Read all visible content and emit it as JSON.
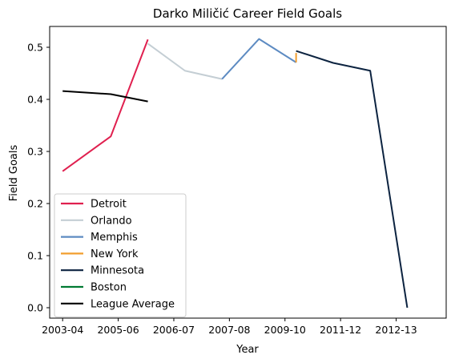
{
  "chart_data": {
    "type": "line",
    "title": "Darko Miličić Career Field Goals",
    "xlabel": "Year",
    "ylabel": "Field Goals",
    "x_range": [
      2002.65,
      2013.35
    ],
    "ylim": [
      -0.02,
      0.54
    ],
    "x_ticks": [
      {
        "value": 2003,
        "label": "2003-04"
      },
      {
        "value": 2005,
        "label": "2005-06"
      },
      {
        "value": 2007,
        "label": "2006-07"
      },
      {
        "value": 2009,
        "label": "2007-08"
      },
      {
        "value": 2011,
        "label": "2009-10"
      },
      {
        "value": 2013,
        "label": "2011-12"
      },
      {
        "value": 2015,
        "label": "2012-13"
      }
    ],
    "y_ticks": [
      0.0,
      0.1,
      0.2,
      0.3,
      0.4,
      0.5
    ],
    "y_tick_labels": [
      "0.0",
      "0.1",
      "0.2",
      "0.3",
      "0.4",
      "0.5"
    ],
    "legend_position": "lower-left",
    "series": [
      {
        "name": "Detroit",
        "color": "#e0204f",
        "points": [
          [
            2003,
            0.262
          ],
          [
            2004.3,
            0.329
          ],
          [
            2005.3,
            0.515
          ]
        ]
      },
      {
        "name": "Orlando",
        "color": "#c4ced4",
        "points": [
          [
            2005.3,
            0.507
          ],
          [
            2006.3,
            0.455
          ],
          [
            2007.3,
            0.439
          ]
        ]
      },
      {
        "name": "Memphis",
        "color": "#5d8bc2",
        "points": [
          [
            2007.3,
            0.439
          ],
          [
            2008.3,
            0.516
          ],
          [
            2009.3,
            0.471
          ]
        ]
      },
      {
        "name": "New York",
        "color": "#f29e2e",
        "points": [
          [
            2009.3,
            0.471
          ],
          [
            2009.3,
            0.489
          ]
        ]
      },
      {
        "name": "Minnesota",
        "color": "#0c2340",
        "points": [
          [
            2009.3,
            0.493
          ],
          [
            2010.3,
            0.47
          ],
          [
            2011.3,
            0.455
          ],
          [
            2012.3,
            0.0
          ]
        ]
      },
      {
        "name": "Boston",
        "color": "#007a33",
        "points": []
      },
      {
        "name": "League Average",
        "color": "#000000",
        "points": [
          [
            2003,
            0.416
          ],
          [
            2004.3,
            0.41
          ],
          [
            2005.3,
            0.396
          ]
        ]
      }
    ]
  }
}
